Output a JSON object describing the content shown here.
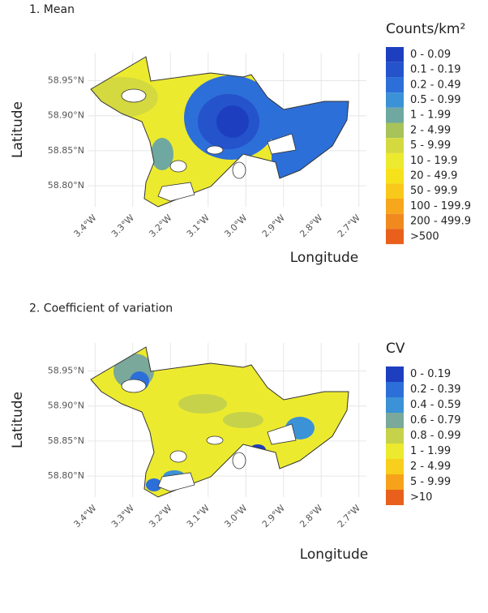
{
  "chart_data": [
    {
      "type": "map",
      "title": "1. Mean",
      "xlabel": "Longitude",
      "ylabel": "Latitude",
      "xlim": [
        -3.42,
        -2.68
      ],
      "ylim": [
        58.77,
        58.99
      ],
      "xticks": [
        {
          "value": -3.4,
          "label": "3.4°W"
        },
        {
          "value": -3.3,
          "label": "3.3°W"
        },
        {
          "value": -3.2,
          "label": "3.2°W"
        },
        {
          "value": -3.1,
          "label": "3.1°W"
        },
        {
          "value": -3.0,
          "label": "3.0°W"
        },
        {
          "value": -2.9,
          "label": "2.9°W"
        },
        {
          "value": -2.8,
          "label": "2.8°W"
        },
        {
          "value": -2.7,
          "label": "2.7°W"
        }
      ],
      "yticks": [
        {
          "value": 58.8,
          "label": "58.80°N"
        },
        {
          "value": 58.85,
          "label": "58.85°N"
        },
        {
          "value": 58.9,
          "label": "58.90°N"
        },
        {
          "value": 58.95,
          "label": "58.95°N"
        }
      ],
      "grid": true,
      "legend": {
        "title": "Counts/km²",
        "items": [
          {
            "label": "0 - 0.09",
            "color": "#1d3fbf"
          },
          {
            "label": "0.1 - 0.19",
            "color": "#2453cc"
          },
          {
            "label": "0.2 - 0.49",
            "color": "#2d6fd8"
          },
          {
            "label": "0.5 - 0.99",
            "color": "#3b92d6"
          },
          {
            "label": "1 - 1.99",
            "color": "#6fa8a0"
          },
          {
            "label": "2 - 4.99",
            "color": "#a7c35a"
          },
          {
            "label": "5 - 9.99",
            "color": "#d4d93f"
          },
          {
            "label": "10 - 19.9",
            "color": "#ecea2f"
          },
          {
            "label": "20 - 49.9",
            "color": "#f5e21a"
          },
          {
            "label": "50 - 99.9",
            "color": "#f8c81a"
          },
          {
            "label": "100 - 199.9",
            "color": "#f6a71b"
          },
          {
            "label": "200 - 499.9",
            "color": "#f08a1e"
          },
          {
            "label": ">500",
            "color": "#e8601c"
          }
        ]
      }
    },
    {
      "type": "map",
      "title": "2. Coefficient of variation",
      "xlabel": "Longitude",
      "ylabel": "Latitude",
      "xlim": [
        -3.42,
        -2.68
      ],
      "ylim": [
        58.77,
        58.99
      ],
      "xticks": [
        {
          "value": -3.4,
          "label": "3.4°W"
        },
        {
          "value": -3.3,
          "label": "3.3°W"
        },
        {
          "value": -3.2,
          "label": "3.2°W"
        },
        {
          "value": -3.1,
          "label": "3.1°W"
        },
        {
          "value": -3.0,
          "label": "3.0°W"
        },
        {
          "value": -2.9,
          "label": "2.9°W"
        },
        {
          "value": -2.8,
          "label": "2.8°W"
        },
        {
          "value": -2.7,
          "label": "2.7°W"
        }
      ],
      "yticks": [
        {
          "value": 58.8,
          "label": "58.80°N"
        },
        {
          "value": 58.85,
          "label": "58.85°N"
        },
        {
          "value": 58.9,
          "label": "58.90°N"
        },
        {
          "value": 58.95,
          "label": "58.95°N"
        }
      ],
      "grid": true,
      "legend": {
        "title": "CV",
        "items": [
          {
            "label": "0 - 0.19",
            "color": "#1d3fbf"
          },
          {
            "label": "0.2 - 0.39",
            "color": "#2d6fd8"
          },
          {
            "label": "0.4 - 0.59",
            "color": "#3b92d6"
          },
          {
            "label": "0.6 - 0.79",
            "color": "#7aa89a"
          },
          {
            "label": "0.8 - 0.99",
            "color": "#c5d24a"
          },
          {
            "label": "1 - 1.99",
            "color": "#ecea2f"
          },
          {
            "label": "2 - 4.99",
            "color": "#f7cf1c"
          },
          {
            "label": "5 - 9.99",
            "color": "#f6a31b"
          },
          {
            "label": ">10",
            "color": "#e8601c"
          }
        ]
      }
    }
  ]
}
